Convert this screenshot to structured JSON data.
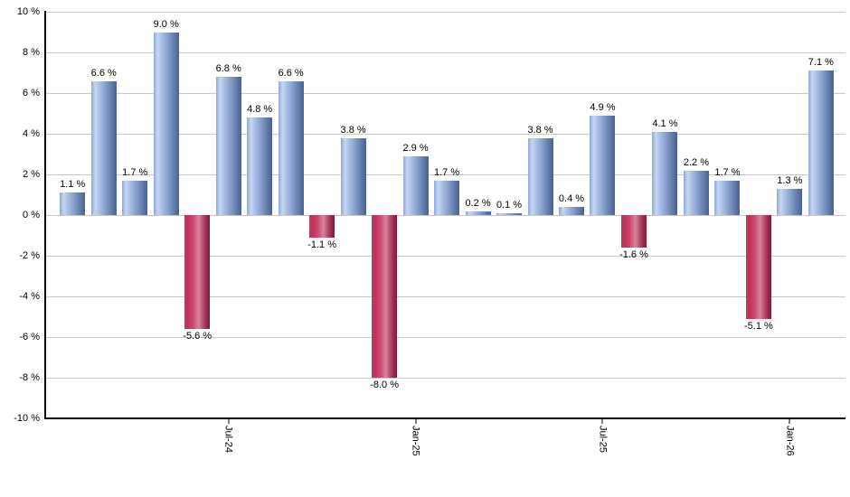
{
  "chart_data": {
    "type": "bar",
    "title": "",
    "xlabel": "",
    "ylabel": "",
    "ylim": [
      -10,
      10
    ],
    "grid": "horizontal",
    "legend": "none",
    "value_label_format": "#.# %",
    "values": [
      1.1,
      6.6,
      1.7,
      9.0,
      -5.6,
      6.8,
      4.8,
      6.6,
      -1.1,
      3.8,
      -8.0,
      2.9,
      1.7,
      0.2,
      0.1,
      3.8,
      0.4,
      4.9,
      -1.6,
      4.1,
      2.2,
      1.7,
      -5.1,
      1.3,
      7.1
    ],
    "value_labels": [
      "1.1 %",
      "6.6 %",
      "1.7 %",
      "9.0 %",
      "-5.6 %",
      "6.8 %",
      "4.8 %",
      "6.6 %",
      "-1.1 %",
      "3.8 %",
      "-8.0 %",
      "2.9 %",
      "1.7 %",
      "0.2 %",
      "0.1 %",
      "3.8 %",
      "0.4 %",
      "4.9 %",
      "-1.6 %",
      "4.1 %",
      "2.2 %",
      "1.7 %",
      "-5.1 %",
      "1.3 %",
      "7.1 %"
    ],
    "y_ticks": [
      {
        "value": 10,
        "label": "10 %"
      },
      {
        "value": 8,
        "label": "8 %"
      },
      {
        "value": 6,
        "label": "6 %"
      },
      {
        "value": 4,
        "label": "4 %"
      },
      {
        "value": 2,
        "label": "2 %"
      },
      {
        "value": 0,
        "label": "0 %"
      },
      {
        "value": -2,
        "label": "-2 %"
      },
      {
        "value": -4,
        "label": "-4 %"
      },
      {
        "value": -6,
        "label": "-6 %"
      },
      {
        "value": -8,
        "label": "-8 %"
      },
      {
        "value": -10,
        "label": "-10 %"
      }
    ],
    "x_ticks": [
      {
        "index": 5,
        "label": "Jul-24"
      },
      {
        "index": 11,
        "label": "Jan-25"
      },
      {
        "index": 17,
        "label": "Jul-25"
      },
      {
        "index": 23,
        "label": "Jan-26"
      }
    ],
    "colors": {
      "positive_bar": "#7b96c8",
      "negative_bar": "#c23058",
      "gridline": "#c9c9c9",
      "axis": "#000000",
      "background": "#ffffff"
    }
  }
}
